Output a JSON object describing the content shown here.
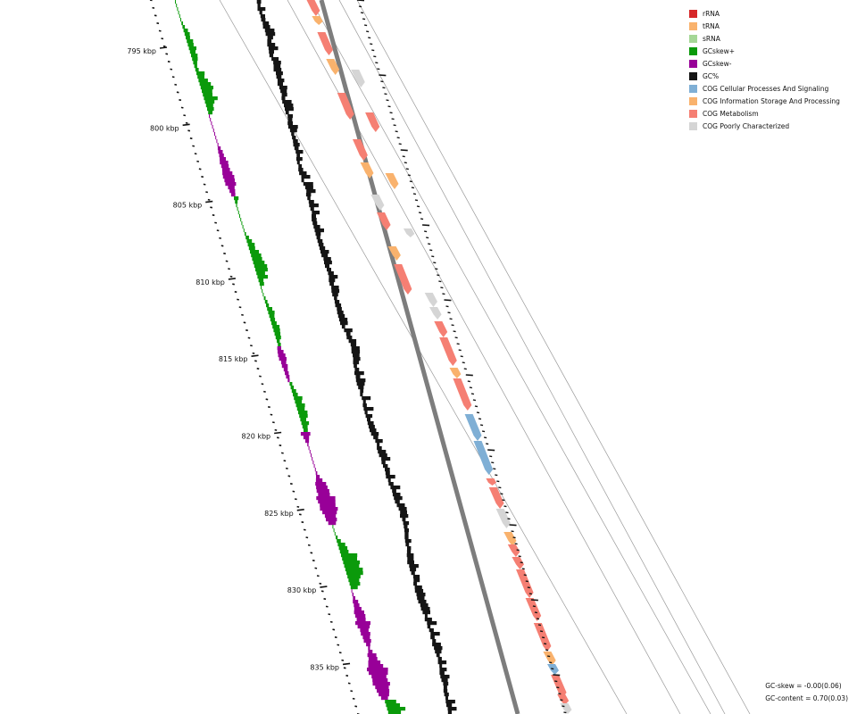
{
  "map": {
    "position_labels": [
      "795 kbp",
      "800 kbp",
      "805 kbp",
      "810 kbp",
      "815 kbp",
      "820 kbp",
      "825 kbp",
      "830 kbp",
      "835 kbp"
    ]
  },
  "legend": {
    "items": [
      {
        "label": "rRNA",
        "color": "#d62728"
      },
      {
        "label": "tRNA",
        "color": "#f9b26d"
      },
      {
        "label": "sRNA",
        "color": "#a5d796"
      },
      {
        "label": "GCskew+",
        "color": "#0b9a0b"
      },
      {
        "label": "GCskew-",
        "color": "#980098"
      },
      {
        "label": "GC%",
        "color": "#151515"
      },
      {
        "label": "COG Cellular Processes And Signaling",
        "color": "#7fafd5"
      },
      {
        "label": "COG Information Storage And Processing",
        "color": "#f9b26d"
      },
      {
        "label": "COG Metabolism",
        "color": "#f57f73"
      },
      {
        "label": "COG Poorly Characterized",
        "color": "#d5d5d5"
      }
    ]
  },
  "stats": {
    "gc_skew": "GC-skew = -0.00(0.06)",
    "gc_content": "GC-content = 0.70(0.03)"
  }
}
